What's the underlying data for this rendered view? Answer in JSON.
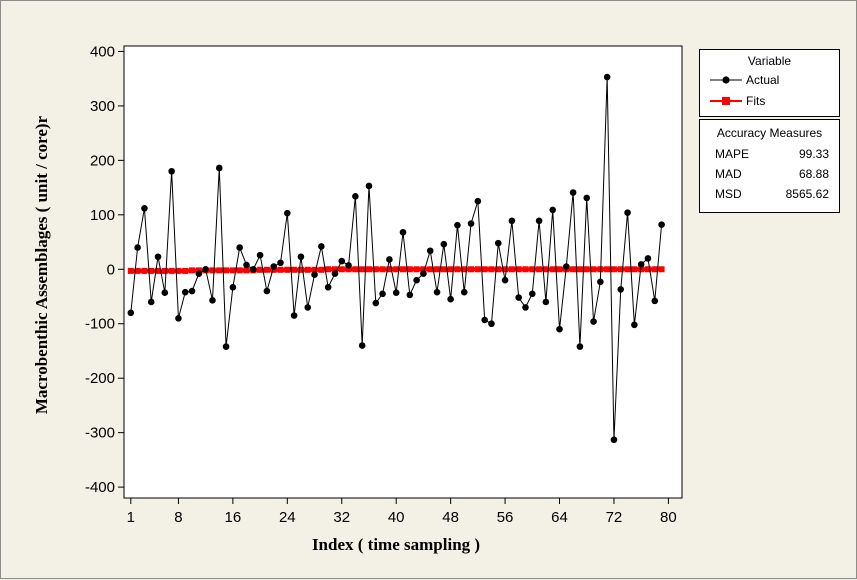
{
  "chart_data": {
    "type": "line",
    "xlabel": "Index ( time sampling )",
    "ylabel": "Macrobenthic Assemblages ( unit / core)r",
    "xlim": [
      0,
      82
    ],
    "ylim": [
      -420,
      410
    ],
    "x_ticks": [
      1,
      8,
      16,
      24,
      32,
      40,
      48,
      56,
      64,
      72,
      80
    ],
    "y_ticks": [
      400,
      300,
      200,
      100,
      0,
      -100,
      -200,
      -300,
      -400
    ],
    "series": [
      {
        "name": "Actual",
        "color": "#000000",
        "marker": "circle",
        "values": [
          -80,
          40,
          112,
          -60,
          23,
          -43,
          180,
          -90,
          -42,
          -40,
          -8,
          0,
          -57,
          186,
          -142,
          -33,
          40,
          8,
          0,
          26,
          -40,
          5,
          12,
          103,
          -85,
          23,
          -70,
          -10,
          42,
          -33,
          -8,
          15,
          7,
          134,
          -140,
          153,
          -62,
          -45,
          18,
          -43,
          68,
          -47,
          -20,
          -8,
          34,
          -42,
          46,
          -55,
          81,
          -42,
          84,
          125,
          -93,
          -100,
          48,
          -20,
          89,
          -52,
          -70,
          -45,
          89,
          -60,
          109,
          -110,
          5,
          141,
          -142,
          131,
          -96,
          -23,
          353,
          -313,
          -37,
          104,
          -102,
          9,
          20,
          -58,
          82
        ]
      },
      {
        "name": "Fits",
        "color": "#ff0000",
        "marker": "square",
        "values": [
          -3,
          -3,
          -3,
          -3,
          -3,
          -3,
          -3,
          -3,
          -3,
          -2,
          -2,
          -2,
          -2,
          -2,
          -2,
          -2,
          -2,
          -2,
          -2,
          -1,
          -1,
          -1,
          -1,
          -1,
          -1,
          -1,
          -1,
          -1,
          -1,
          0,
          0,
          0,
          0,
          0,
          0,
          0,
          0,
          0,
          0,
          0,
          0,
          0,
          0,
          0,
          0,
          0,
          0,
          0,
          0,
          0,
          0,
          0,
          0,
          0,
          0,
          0,
          0,
          0,
          0,
          0,
          0,
          0,
          0,
          0,
          0,
          0,
          0,
          0,
          0,
          0,
          0,
          0,
          0,
          0,
          0,
          0,
          0,
          0,
          0
        ]
      }
    ],
    "grid": false,
    "legend_position": "right"
  },
  "legend": {
    "title": "Variable",
    "items": [
      {
        "label": "Actual",
        "color": "#000000",
        "symbol": "circle"
      },
      {
        "label": "Fits",
        "color": "#ff0000",
        "symbol": "square"
      }
    ]
  },
  "accuracy": {
    "title": "Accuracy Measures",
    "rows": [
      {
        "name": "MAPE",
        "value": "99.33"
      },
      {
        "name": "MAD",
        "value": "68.88"
      },
      {
        "name": "MSD",
        "value": "8565.62"
      }
    ]
  }
}
